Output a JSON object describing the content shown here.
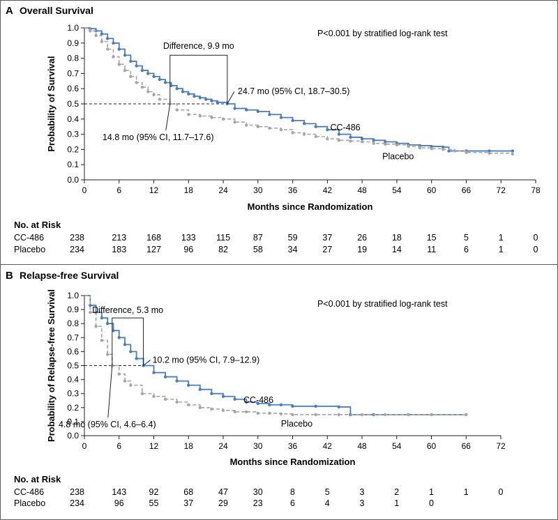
{
  "chart_data": [
    {
      "type": "line",
      "letter": "A",
      "title": "Overall Survival",
      "xlabel": "Months since Randomization",
      "ylabel": "Probability of Survival",
      "xlim": [
        0,
        78
      ],
      "ylim": [
        0,
        1.0
      ],
      "xticks": [
        0,
        6,
        12,
        18,
        24,
        30,
        36,
        42,
        48,
        54,
        60,
        66,
        72,
        78
      ],
      "yticks": [
        0.0,
        0.1,
        0.2,
        0.3,
        0.4,
        0.5,
        0.6,
        0.7,
        0.8,
        0.9,
        1.0
      ],
      "test_label": "P<0.001 by stratified log-rank test",
      "difference_label": "Difference, 9.9 mo",
      "median_label_a": "24.7 mo (95% CI, 18.7–30.5)",
      "median_label_b": "14.8 mo (95% CI, 11.7–17.6)",
      "median_a": 24.7,
      "median_b": 14.8,
      "reference_y": 0.5,
      "grid": false,
      "series": [
        {
          "name": "CC-486",
          "color": "#4a7cc0",
          "style": "solid",
          "x": [
            0,
            1,
            2,
            3,
            4,
            5,
            6,
            7,
            8,
            9,
            10,
            11,
            12,
            13,
            14,
            15,
            16,
            17,
            18,
            19,
            20,
            21,
            22,
            23,
            24.7,
            26,
            28,
            30,
            32,
            34,
            36,
            38,
            40,
            42,
            44,
            46,
            48,
            50,
            52,
            54,
            56,
            58,
            60,
            62,
            63,
            66,
            70,
            74
          ],
          "y": [
            1.0,
            0.995,
            0.98,
            0.96,
            0.93,
            0.9,
            0.86,
            0.82,
            0.78,
            0.75,
            0.72,
            0.7,
            0.68,
            0.66,
            0.64,
            0.62,
            0.6,
            0.58,
            0.565,
            0.55,
            0.54,
            0.53,
            0.52,
            0.51,
            0.5,
            0.47,
            0.46,
            0.45,
            0.43,
            0.41,
            0.39,
            0.37,
            0.35,
            0.33,
            0.3,
            0.28,
            0.27,
            0.26,
            0.25,
            0.24,
            0.23,
            0.225,
            0.22,
            0.215,
            0.19,
            0.19,
            0.19,
            0.19
          ],
          "label_x": 42.5,
          "label_y": 0.325
        },
        {
          "name": "Placebo",
          "color": "#a6a6a6",
          "style": "dashed",
          "x": [
            0,
            1,
            2,
            3,
            4,
            5,
            6,
            7,
            8,
            9,
            10,
            11,
            12,
            13,
            14.8,
            16,
            18,
            20,
            22,
            24,
            26,
            28,
            30,
            32,
            34,
            36,
            38,
            40,
            42,
            44,
            46,
            48,
            50,
            52,
            54,
            56,
            58,
            60,
            62,
            64,
            66,
            70,
            74
          ],
          "y": [
            1.0,
            0.98,
            0.95,
            0.91,
            0.86,
            0.81,
            0.76,
            0.72,
            0.68,
            0.64,
            0.61,
            0.58,
            0.56,
            0.53,
            0.5,
            0.46,
            0.43,
            0.42,
            0.41,
            0.4,
            0.38,
            0.36,
            0.35,
            0.34,
            0.33,
            0.31,
            0.3,
            0.285,
            0.27,
            0.26,
            0.255,
            0.25,
            0.24,
            0.235,
            0.23,
            0.22,
            0.21,
            0.205,
            0.2,
            0.19,
            0.18,
            0.175,
            0.17
          ],
          "label_x": 51.5,
          "label_y": 0.135
        }
      ],
      "risk_table": {
        "heading": "No. at Risk",
        "at_months": [
          0,
          6,
          12,
          18,
          24,
          30,
          36,
          42,
          48,
          54,
          60,
          66,
          72,
          78
        ],
        "rows": [
          {
            "name": "CC-486",
            "values": [
              "238",
              "213",
              "168",
              "133",
              "115",
              "87",
              "59",
              "37",
              "26",
              "18",
              "15",
              "5",
              "1",
              "0"
            ]
          },
          {
            "name": "Placebo",
            "values": [
              "234",
              "183",
              "127",
              "96",
              "82",
              "58",
              "34",
              "27",
              "19",
              "14",
              "11",
              "6",
              "1",
              "0"
            ]
          }
        ]
      }
    },
    {
      "type": "line",
      "letter": "B",
      "title": "Relapse-free Survival",
      "xlabel": "Months since Randomization",
      "ylabel": "Probability of Relapse-free Survival",
      "xlim": [
        0,
        72
      ],
      "ylim": [
        0,
        1.0
      ],
      "xticks": [
        0,
        6,
        12,
        18,
        24,
        30,
        36,
        42,
        48,
        54,
        60,
        66,
        72
      ],
      "yticks": [
        0.0,
        0.1,
        0.2,
        0.3,
        0.4,
        0.5,
        0.6,
        0.7,
        0.8,
        0.9,
        1.0
      ],
      "test_label": "P<0.001 by stratified log-rank test",
      "difference_label": "Difference, 5.3 mo",
      "median_label_a": "10.2 mo (95% CI, 7.9–12.9)",
      "median_label_b": "4.8 mo (95% CI, 4.6–6.4)",
      "median_a": 10.2,
      "median_b": 4.8,
      "reference_y": 0.5,
      "grid": false,
      "series": [
        {
          "name": "CC-486",
          "color": "#4a7cc0",
          "style": "solid",
          "x": [
            0,
            1,
            2,
            3,
            4,
            5,
            6,
            7,
            8,
            9,
            10.2,
            12,
            14,
            16,
            18,
            20,
            22,
            24,
            26,
            28,
            30,
            32,
            34,
            36,
            40,
            44,
            46,
            50,
            56,
            60,
            66
          ],
          "y": [
            1.0,
            0.93,
            0.88,
            0.84,
            0.8,
            0.75,
            0.7,
            0.65,
            0.6,
            0.55,
            0.5,
            0.45,
            0.42,
            0.39,
            0.36,
            0.33,
            0.3,
            0.28,
            0.26,
            0.24,
            0.23,
            0.22,
            0.22,
            0.21,
            0.21,
            0.205,
            0.15,
            0.15,
            0.15,
            0.15,
            0.15
          ],
          "label_x": 27.5,
          "label_y": 0.235
        },
        {
          "name": "Placebo",
          "color": "#a6a6a6",
          "style": "dashed",
          "x": [
            0,
            1,
            2,
            3,
            4,
            4.8,
            6,
            7,
            8,
            10,
            12,
            14,
            16,
            18,
            20,
            22,
            24,
            26,
            28,
            30,
            32,
            34,
            36,
            40,
            44,
            48,
            52,
            56,
            60,
            66
          ],
          "y": [
            1.0,
            0.88,
            0.78,
            0.68,
            0.58,
            0.5,
            0.44,
            0.39,
            0.36,
            0.3,
            0.28,
            0.26,
            0.24,
            0.22,
            0.2,
            0.19,
            0.18,
            0.17,
            0.17,
            0.16,
            0.16,
            0.155,
            0.15,
            0.15,
            0.15,
            0.15,
            0.15,
            0.15,
            0.15,
            0.15
          ],
          "label_x": 34,
          "label_y": 0.065
        }
      ],
      "risk_table": {
        "heading": "No. at Risk",
        "at_months": [
          0,
          6,
          12,
          18,
          24,
          30,
          36,
          42,
          48,
          54,
          60,
          66,
          72
        ],
        "rows": [
          {
            "name": "CC-486",
            "values": [
              "238",
              "143",
              "92",
              "68",
              "47",
              "30",
              "8",
              "5",
              "3",
              "2",
              "1",
              "1",
              "0"
            ]
          },
          {
            "name": "Placebo",
            "values": [
              "234",
              "96",
              "55",
              "37",
              "29",
              "23",
              "6",
              "4",
              "3",
              "1",
              "0",
              "",
              ""
            ]
          }
        ]
      }
    }
  ]
}
